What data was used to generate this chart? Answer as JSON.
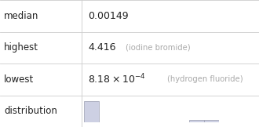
{
  "rows": [
    {
      "label": "median",
      "value_main": "0.00149",
      "value_sci": false,
      "note": ""
    },
    {
      "label": "highest",
      "value_main": "4.416",
      "value_sci": false,
      "note": "iodine bromide"
    },
    {
      "label": "lowest",
      "value_main": "8.18×10^{-4}",
      "value_sci": true,
      "note": "hydrogen fluoride"
    },
    {
      "label": "distribution",
      "value_main": "",
      "value_sci": false,
      "note": ""
    }
  ],
  "bar_color": "#cdd0e3",
  "bar_edge_color": "#9a9db0",
  "background_color": "#ffffff",
  "text_color": "#222222",
  "note_color": "#aaaaaa",
  "line_color": "#cccccc",
  "col_split": 0.315,
  "row_tops": [
    1.0,
    0.75,
    0.5,
    0.25,
    0.0
  ],
  "label_fontsize": 8.5,
  "value_fontsize": 9.0,
  "note_fontsize": 7.2,
  "hist_bins": [
    0,
    0.5,
    1.0,
    1.5,
    2.0,
    2.5,
    3.0,
    3.5,
    4.0,
    4.5
  ],
  "hist_heights": [
    8,
    0,
    0,
    0,
    0,
    0,
    0,
    1,
    1,
    0
  ]
}
